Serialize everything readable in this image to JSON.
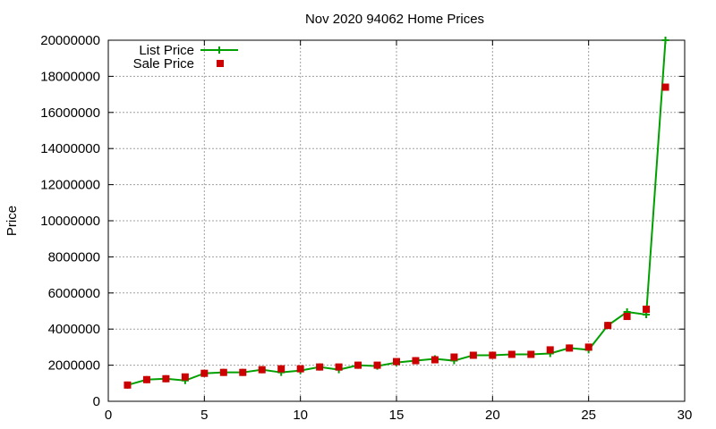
{
  "chart_data": {
    "type": "line",
    "title": "Nov 2020 94062 Home Prices",
    "xlabel": "",
    "ylabel": "Price",
    "xlim": [
      0,
      30
    ],
    "ylim": [
      0,
      20000000
    ],
    "x_ticks": [
      "0",
      "5",
      "10",
      "15",
      "20",
      "25",
      "30"
    ],
    "y_ticks": [
      "0",
      "2000000",
      "4000000",
      "6000000",
      "8000000",
      "10000000",
      "12000000",
      "14000000",
      "16000000",
      "18000000",
      "20000000"
    ],
    "grid": true,
    "legend_position": "top-left",
    "x": [
      1,
      2,
      3,
      4,
      5,
      6,
      7,
      8,
      9,
      10,
      11,
      12,
      13,
      14,
      15,
      16,
      17,
      18,
      19,
      20,
      21,
      22,
      23,
      24,
      25,
      26,
      27,
      28,
      29
    ],
    "series": [
      {
        "name": "List Price",
        "style": "line-with-plus-markers",
        "color": "#00a000",
        "values": [
          900000,
          1200000,
          1250000,
          1150000,
          1550000,
          1600000,
          1600000,
          1750000,
          1600000,
          1700000,
          1900000,
          1750000,
          2000000,
          1950000,
          2150000,
          2250000,
          2350000,
          2250000,
          2550000,
          2550000,
          2600000,
          2600000,
          2650000,
          2950000,
          2850000,
          4200000,
          4950000,
          4800000,
          20000000
        ]
      },
      {
        "name": "Sale Price",
        "style": "square-markers",
        "color": "#cc0000",
        "values": [
          900000,
          1200000,
          1250000,
          1350000,
          1550000,
          1600000,
          1600000,
          1750000,
          1800000,
          1800000,
          1900000,
          1900000,
          2000000,
          2000000,
          2200000,
          2250000,
          2300000,
          2450000,
          2550000,
          2550000,
          2600000,
          2600000,
          2850000,
          2950000,
          3000000,
          4200000,
          4700000,
          5100000,
          17400000
        ]
      }
    ]
  }
}
